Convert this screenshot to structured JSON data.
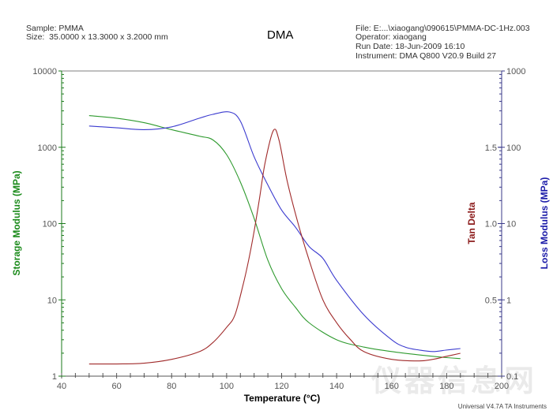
{
  "header": {
    "sample": "Sample: PMMA",
    "size": "Size:  35.0000 x 13.3000 x 3.2000 mm",
    "title": "DMA",
    "file": "File: E:...\\xiaogang\\090615\\PMMA-DC-1Hz.003",
    "operator": "Operator: xiaogang",
    "run_date": "Run Date: 18-Jun-2009 16:10",
    "instrument": "Instrument: DMA Q800 V20.9 Build 27"
  },
  "footer": "Universal V4.7A TA Instruments",
  "watermark": "仪器信息网",
  "colors": {
    "storage": "#2e9a2e",
    "loss": "#3a3acf",
    "tan": "#a02a2a",
    "left_axis": "#1a7a1a",
    "right_axis": "#3a3a8a",
    "frame": "#aaaaaa"
  },
  "chart_data": {
    "type": "line",
    "title": "DMA",
    "xlabel": "Temperature (°C)",
    "ylabel_left": "Storage Modulus (MPa)",
    "ylabel_right_1": "Tan Delta",
    "ylabel_right_2": "Loss Modulus (MPa)",
    "xlim": [
      40,
      200
    ],
    "x_ticks": [
      40,
      60,
      80,
      100,
      120,
      140,
      160,
      180,
      200
    ],
    "y_left": {
      "scale": "log",
      "range": [
        1,
        10000
      ],
      "ticks": [
        1,
        10,
        100,
        1000,
        10000
      ]
    },
    "y_tan": {
      "scale": "linear",
      "range": [
        0,
        2.0
      ],
      "ticks": [
        0.5,
        1.0,
        1.5
      ]
    },
    "y_loss": {
      "scale": "log",
      "range": [
        0.1,
        1000
      ],
      "ticks": [
        0.1,
        1,
        10,
        100,
        1000
      ]
    },
    "grid": false,
    "legend": "none",
    "series": [
      {
        "name": "Storage Modulus (MPa)",
        "axis": "left",
        "color": "#2e9a2e",
        "x": [
          50,
          60,
          70,
          80,
          90,
          95,
          100,
          105,
          110,
          115,
          120,
          125,
          130,
          140,
          150,
          160,
          170,
          180,
          185
        ],
        "y": [
          2600,
          2400,
          2100,
          1700,
          1400,
          1250,
          800,
          350,
          117,
          33,
          14,
          8,
          5,
          3,
          2.4,
          2.1,
          1.9,
          1.75,
          1.7
        ]
      },
      {
        "name": "Loss Modulus (MPa)",
        "axis": "right_loss",
        "color": "#3a3acf",
        "x": [
          50,
          60,
          70,
          80,
          90,
          95,
          101,
          105,
          110,
          115,
          120,
          125,
          130,
          135,
          140,
          150,
          160,
          165,
          170,
          175,
          180,
          185
        ],
        "y": [
          190,
          180,
          170,
          185,
          240,
          270,
          290,
          220,
          75,
          32,
          15,
          9,
          5,
          3.5,
          1.8,
          0.63,
          0.3,
          0.24,
          0.22,
          0.21,
          0.22,
          0.23
        ]
      },
      {
        "name": "Tan Delta",
        "axis": "right_tan",
        "color": "#a02a2a",
        "x": [
          50,
          60,
          70,
          80,
          90,
          95,
          100,
          103,
          106,
          108,
          110,
          112,
          114,
          117,
          119,
          122,
          126,
          130,
          135,
          140,
          145,
          150,
          160,
          170,
          175,
          180,
          185
        ],
        "y": [
          0.08,
          0.08,
          0.085,
          0.11,
          0.16,
          0.22,
          0.32,
          0.4,
          0.6,
          0.76,
          0.95,
          1.17,
          1.4,
          1.61,
          1.55,
          1.28,
          1.0,
          0.76,
          0.5,
          0.35,
          0.24,
          0.16,
          0.11,
          0.1,
          0.11,
          0.13,
          0.15
        ]
      }
    ]
  }
}
